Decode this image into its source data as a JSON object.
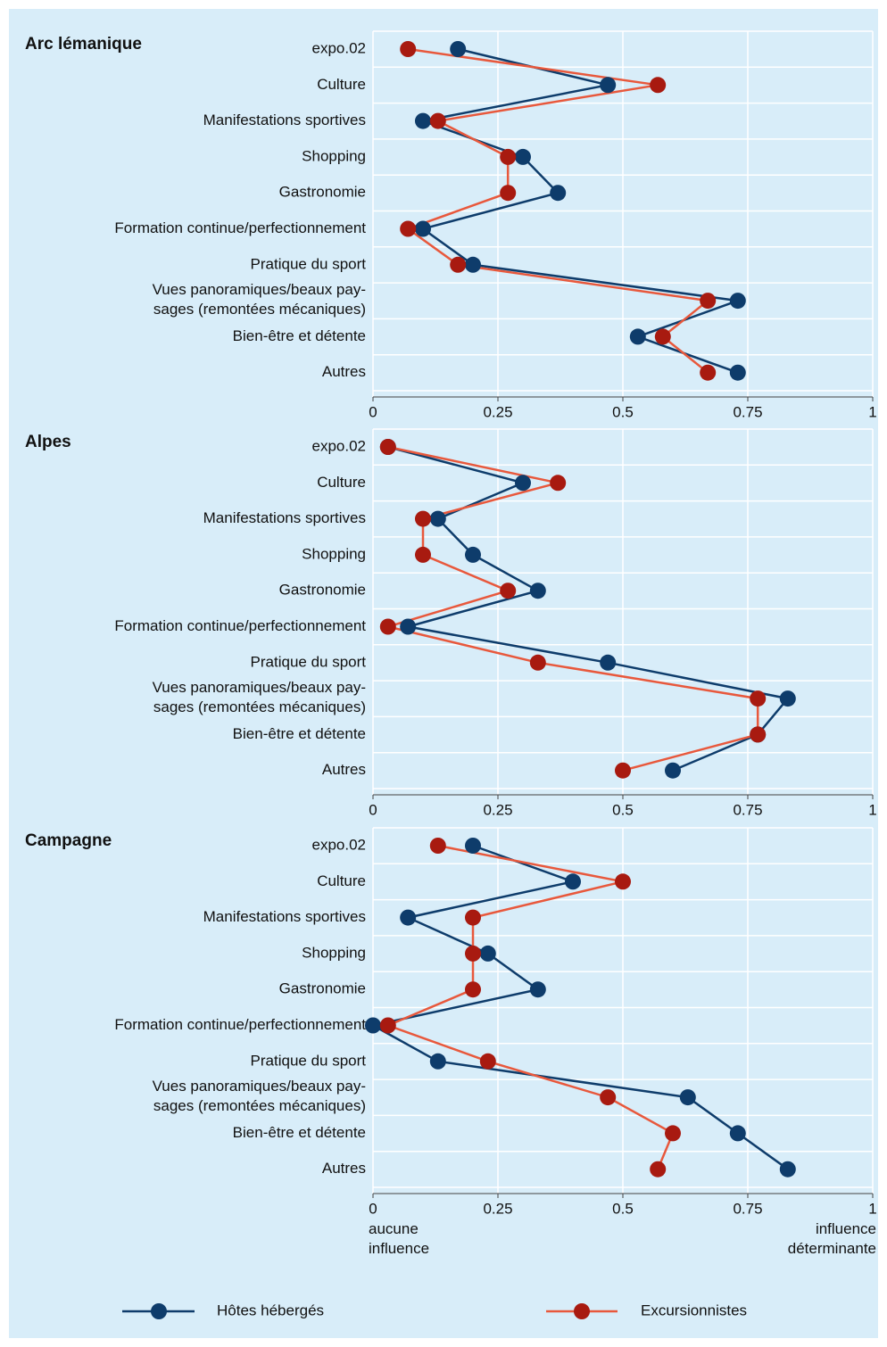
{
  "chart_data": [
    {
      "type": "dot-line",
      "title": "Arc lémanique",
      "categories": [
        "expo.02",
        "Culture",
        "Manifestations sportives",
        "Shopping",
        "Gastronomie",
        "Formation continue/perfectionnement",
        "Pratique du sport",
        "Vues panoramiques/beaux pay-\nsages (remontées mécaniques)",
        "Bien-être et détente",
        "Autres"
      ],
      "series": [
        {
          "name": "Hôtes hébergés",
          "color": "#0e3c6b",
          "marker_color": "#0e3c6b",
          "values": [
            0.17,
            0.47,
            0.1,
            0.3,
            0.37,
            0.1,
            0.2,
            0.73,
            0.53,
            0.73
          ]
        },
        {
          "name": "Excursionnistes",
          "color": "#e8583c",
          "marker_color": "#a81a10",
          "values": [
            0.07,
            0.57,
            0.13,
            0.27,
            0.27,
            0.07,
            0.17,
            0.67,
            0.58,
            0.67
          ]
        }
      ],
      "xlim": [
        0,
        1
      ],
      "xticks": [
        0,
        0.25,
        0.5,
        0.75,
        1
      ],
      "grid": true
    },
    {
      "type": "dot-line",
      "title": "Alpes",
      "categories": [
        "expo.02",
        "Culture",
        "Manifestations sportives",
        "Shopping",
        "Gastronomie",
        "Formation continue/perfectionnement",
        "Pratique du sport",
        "Vues panoramiques/beaux pay-\nsages (remontées mécaniques)",
        "Bien-être et détente",
        "Autres"
      ],
      "series": [
        {
          "name": "Hôtes hébergés",
          "color": "#0e3c6b",
          "marker_color": "#0e3c6b",
          "values": [
            0.03,
            0.3,
            0.13,
            0.2,
            0.33,
            0.07,
            0.47,
            0.83,
            0.77,
            0.6
          ]
        },
        {
          "name": "Excursionnistes",
          "color": "#e8583c",
          "marker_color": "#a81a10",
          "values": [
            0.03,
            0.37,
            0.1,
            0.1,
            0.27,
            0.03,
            0.33,
            0.77,
            0.77,
            0.5
          ]
        }
      ],
      "xlim": [
        0,
        1
      ],
      "xticks": [
        0,
        0.25,
        0.5,
        0.75,
        1
      ],
      "grid": true
    },
    {
      "type": "dot-line",
      "title": "Campagne",
      "categories": [
        "expo.02",
        "Culture",
        "Manifestations sportives",
        "Shopping",
        "Gastronomie",
        "Formation continue/perfectionnement",
        "Pratique du sport",
        "Vues panoramiques/beaux pay-\nsages (remontées mécaniques)",
        "Bien-être et détente",
        "Autres"
      ],
      "series": [
        {
          "name": "Hôtes hébergés",
          "color": "#0e3c6b",
          "marker_color": "#0e3c6b",
          "values": [
            0.2,
            0.4,
            0.07,
            0.23,
            0.33,
            0.0,
            0.13,
            0.63,
            0.73,
            0.83
          ]
        },
        {
          "name": "Excursionnistes",
          "color": "#e8583c",
          "marker_color": "#a81a10",
          "values": [
            0.13,
            0.5,
            0.2,
            0.2,
            0.2,
            0.03,
            0.23,
            0.47,
            0.6,
            0.57
          ]
        }
      ],
      "xlim": [
        0,
        1
      ],
      "xticks": [
        0,
        0.25,
        0.5,
        0.75,
        1
      ],
      "grid": true,
      "x_note_left": "aucune\ninfluence",
      "x_note_right": "influence\ndéterminante"
    }
  ]
}
